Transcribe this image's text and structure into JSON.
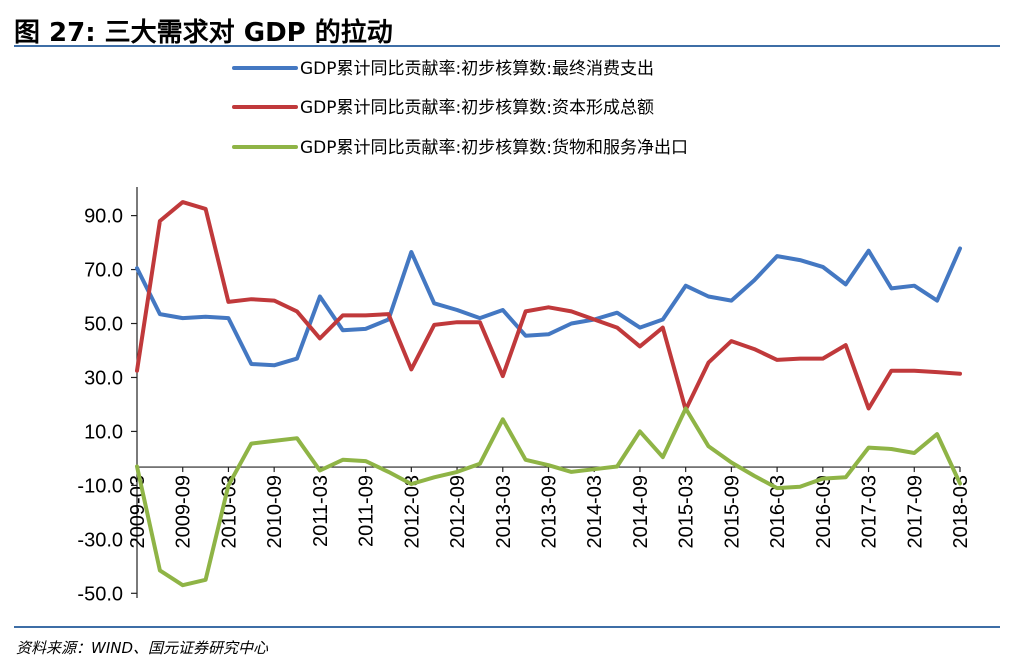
{
  "header": {
    "title": "图 27: 三大需求对 GDP 的拉动"
  },
  "footer": {
    "source": "资料来源：WIND、国元证券研究中心"
  },
  "colors": {
    "rule": "#3e6ea6",
    "consumption": "#4478c2",
    "capital": "#c0393b",
    "net_exports": "#8fb446"
  },
  "chart_data": {
    "type": "line",
    "title": "",
    "xlabel": "",
    "ylabel": "",
    "ylim": [
      -50,
      100
    ],
    "yticks": [
      "90.0",
      "70.0",
      "50.0",
      "30.0",
      "10.0",
      "-10.0",
      "-30.0",
      "-50.0"
    ],
    "ytick_values": [
      90,
      70,
      50,
      30,
      10,
      -10,
      -30,
      -50
    ],
    "x": [
      "2009-03",
      "2009-06",
      "2009-09",
      "2009-12",
      "2010-03",
      "2010-06",
      "2010-09",
      "2010-12",
      "2011-03",
      "2011-06",
      "2011-09",
      "2011-12",
      "2012-03",
      "2012-06",
      "2012-09",
      "2012-12",
      "2013-03",
      "2013-06",
      "2013-09",
      "2013-12",
      "2014-03",
      "2014-06",
      "2014-09",
      "2014-12",
      "2015-03",
      "2015-06",
      "2015-09",
      "2015-12",
      "2016-03",
      "2016-06",
      "2016-09",
      "2016-12",
      "2017-03",
      "2017-06",
      "2017-09",
      "2017-12",
      "2018-03"
    ],
    "xtick_labels": [
      "2009-03",
      "2009-09",
      "2010-03",
      "2010-09",
      "2011-03",
      "2011-09",
      "2012-03",
      "2012-09",
      "2013-03",
      "2013-09",
      "2014-03",
      "2014-09",
      "2015-03",
      "2015-09",
      "2016-03",
      "2016-09",
      "2017-03",
      "2017-09",
      "2018-03"
    ],
    "legend_position": "top",
    "grid": false,
    "series": [
      {
        "name": "GDP累计同比贡献率:初步核算数:最终消费支出",
        "color": "#4478c2",
        "values": [
          70.5,
          53.5,
          52,
          52.5,
          52,
          35,
          34.5,
          37,
          60,
          47.5,
          48,
          51.5,
          76.5,
          57.5,
          55,
          52,
          55,
          45.5,
          46,
          50,
          51.5,
          54,
          48.5,
          51.5,
          64,
          60,
          58.5,
          66,
          75,
          73.5,
          71,
          64.5,
          77,
          63,
          64,
          58.5,
          77.8
        ]
      },
      {
        "name": "GDP累计同比贡献率:初步核算数:资本形成总额",
        "color": "#c0393b",
        "values": [
          32.5,
          88,
          95,
          92.5,
          58,
          59,
          58.5,
          54.5,
          44.5,
          53,
          53,
          53.5,
          33,
          49.5,
          50.5,
          50.5,
          30.5,
          54.5,
          56,
          54.5,
          51.5,
          48.5,
          41.5,
          48.5,
          18,
          35.5,
          43.5,
          40.5,
          36.5,
          37,
          37,
          42,
          18.5,
          32.5,
          32.5,
          32,
          31.4
        ]
      },
      {
        "name": "GDP累计同比贡献率:初步核算数:货物和服务净出口",
        "color": "#8fb446",
        "values": [
          -3,
          -41.5,
          -47,
          -45,
          -10,
          5.5,
          6.5,
          7.5,
          -4.5,
          -0.5,
          -1,
          -5,
          -9.5,
          -7,
          -5,
          -2,
          14.5,
          -0.5,
          -2.5,
          -5,
          -4,
          -3,
          10,
          0.5,
          18.5,
          4.5,
          -1.5,
          -6.5,
          -11,
          -10.5,
          -7.5,
          -7,
          4,
          3.5,
          2,
          9,
          -9.3
        ]
      }
    ]
  }
}
